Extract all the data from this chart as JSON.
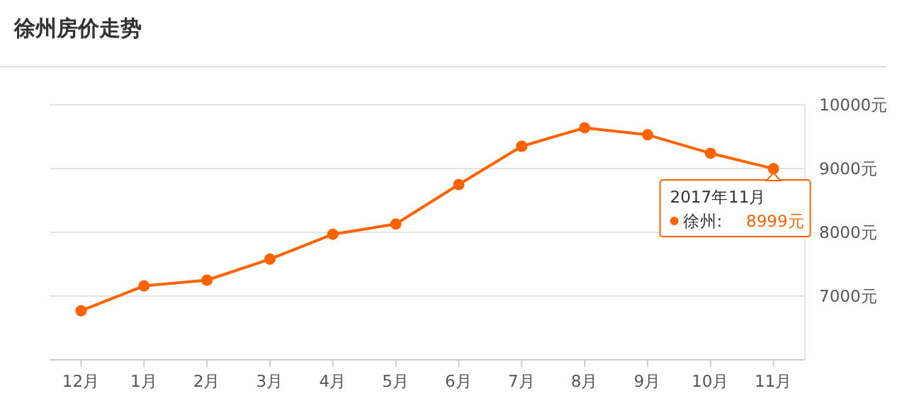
{
  "chart_data": {
    "type": "line",
    "title": "徐州房价走势",
    "categories": [
      "12月",
      "1月",
      "2月",
      "3月",
      "4月",
      "5月",
      "6月",
      "7月",
      "8月",
      "9月",
      "10月",
      "11月"
    ],
    "series": [
      {
        "name": "徐州:",
        "color": "#ff6300",
        "values": [
          6770,
          7160,
          7250,
          7580,
          7970,
          8130,
          8750,
          9350,
          9640,
          9530,
          9240,
          8999
        ],
        "value_labels": [
          null,
          null,
          null,
          null,
          null,
          null,
          null,
          null,
          null,
          null,
          null,
          "8999元"
        ]
      }
    ],
    "ylim": [
      6000,
      10000
    ],
    "yticks": [
      {
        "value": 7000,
        "label": "7000元"
      },
      {
        "value": 8000,
        "label": "8000元"
      },
      {
        "value": 9000,
        "label": "9000元"
      },
      {
        "value": 10000,
        "label": "10000元"
      }
    ],
    "grid": "y",
    "marker": "circle",
    "annotations": [
      {
        "text": "2017年11月",
        "x": "11月",
        "y": 8999
      }
    ]
  }
}
